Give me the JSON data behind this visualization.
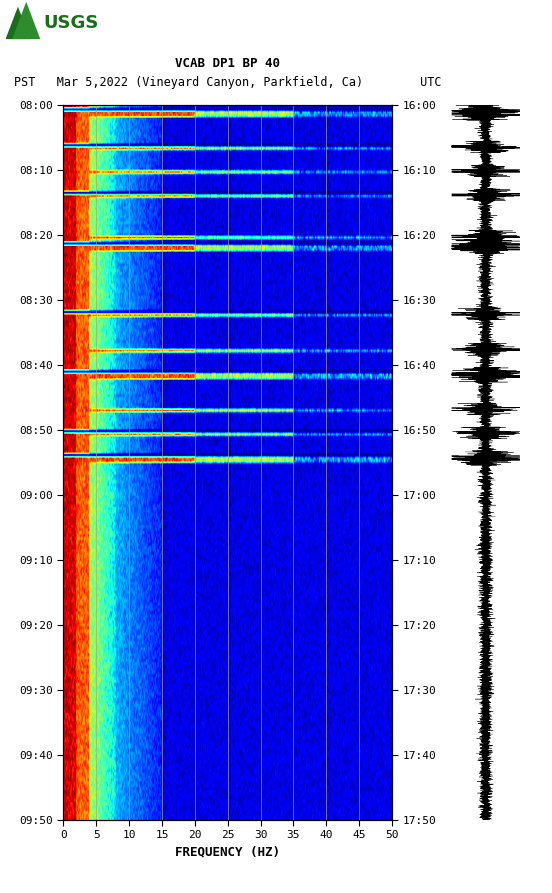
{
  "title_line1": "VCAB DP1 BP 40",
  "title_line2": "PST   Mar 5,2022 (Vineyard Canyon, Parkfield, Ca)        UTC",
  "xlabel": "FREQUENCY (HZ)",
  "freq_min": 0,
  "freq_max": 50,
  "pst_ticks": [
    "08:00",
    "08:10",
    "08:20",
    "08:30",
    "08:40",
    "08:50",
    "09:00",
    "09:10",
    "09:20",
    "09:30",
    "09:40",
    "09:50"
  ],
  "utc_ticks": [
    "16:00",
    "16:10",
    "16:20",
    "16:30",
    "16:40",
    "16:50",
    "17:00",
    "17:10",
    "17:20",
    "17:30",
    "17:40",
    "17:50"
  ],
  "freq_ticks": [
    0,
    5,
    10,
    15,
    20,
    25,
    30,
    35,
    40,
    45,
    50
  ],
  "vertical_grid_lines": [
    5,
    10,
    15,
    20,
    25,
    30,
    35,
    40,
    45
  ],
  "bg_color": "white",
  "spectrogram_cmap": "jet",
  "fig_width": 5.52,
  "fig_height": 8.93,
  "n_time": 240,
  "n_freq": 500,
  "noise_seed": 42,
  "earthquake_rows": [
    2,
    3,
    14,
    22,
    30,
    44,
    47,
    48,
    70,
    82,
    90,
    91,
    102,
    110,
    118,
    119
  ],
  "dark_rows": [
    1,
    13,
    29,
    46,
    69,
    89,
    109,
    117
  ],
  "waveform_seed": 7
}
